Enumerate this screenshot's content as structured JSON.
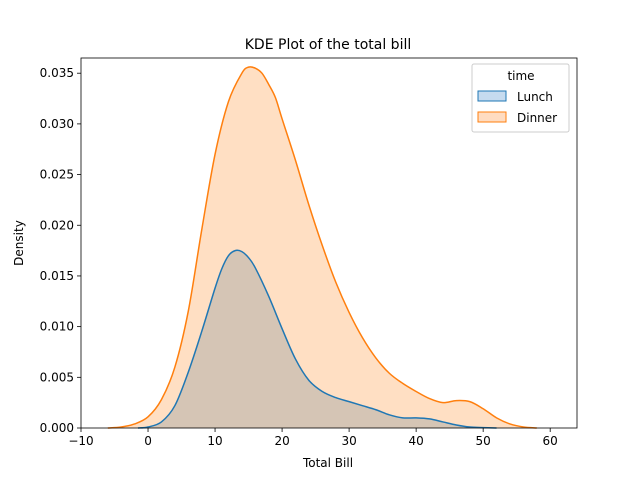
{
  "chart_data": {
    "type": "area",
    "title": "KDE Plot of the total bill",
    "xlabel": "Total Bill",
    "ylabel": "Density",
    "xlim": [
      -10,
      64
    ],
    "ylim": [
      0,
      0.0365
    ],
    "xticks": [
      -10,
      0,
      10,
      20,
      30,
      40,
      50,
      60
    ],
    "xtick_labels": [
      "−10",
      "0",
      "10",
      "20",
      "30",
      "40",
      "50",
      "60"
    ],
    "yticks": [
      0,
      0.005,
      0.01,
      0.015,
      0.02,
      0.025,
      0.03,
      0.035
    ],
    "ytick_labels": [
      "0.000",
      "0.005",
      "0.010",
      "0.015",
      "0.020",
      "0.025",
      "0.030",
      "0.035"
    ],
    "grid": false,
    "legend": {
      "title": "time",
      "placement": "top-right"
    },
    "series": [
      {
        "name": "Lunch",
        "color": "#1f77b4",
        "fill": "#c6dbef",
        "x": [
          -1.5,
          0,
          2,
          4,
          6,
          8,
          10,
          11,
          12,
          13,
          14,
          15,
          16,
          18,
          20,
          22,
          24,
          26,
          28,
          30,
          32,
          34,
          36,
          38,
          40,
          42,
          44,
          46,
          48,
          50,
          52
        ],
        "y": [
          0.0,
          0.0001,
          0.0006,
          0.0022,
          0.0055,
          0.0095,
          0.0138,
          0.0157,
          0.017,
          0.0175,
          0.0174,
          0.0168,
          0.0158,
          0.013,
          0.0098,
          0.0068,
          0.0047,
          0.0036,
          0.003,
          0.0026,
          0.0022,
          0.0018,
          0.0013,
          0.001,
          0.001,
          0.0009,
          0.0006,
          0.0003,
          0.0001,
          4e-05,
          0.0
        ]
      },
      {
        "name": "Dinner",
        "color": "#ff7f0e",
        "fill": "#ffdcc1",
        "x": [
          -6,
          -4,
          -2,
          0,
          2,
          4,
          6,
          8,
          10,
          12,
          14,
          15,
          16,
          17,
          18,
          19,
          20,
          22,
          24,
          26,
          28,
          30,
          32,
          34,
          36,
          38,
          40,
          42,
          44,
          46,
          48,
          50,
          52,
          54,
          56,
          58
        ],
        "y": [
          0.0,
          0.0001,
          0.0004,
          0.0011,
          0.0028,
          0.006,
          0.0115,
          0.0195,
          0.027,
          0.0322,
          0.035,
          0.0356,
          0.0355,
          0.035,
          0.0339,
          0.0326,
          0.0305,
          0.0264,
          0.022,
          0.018,
          0.0144,
          0.0114,
          0.0089,
          0.0069,
          0.0054,
          0.0044,
          0.0036,
          0.0029,
          0.0025,
          0.0027,
          0.0026,
          0.0019,
          0.001,
          0.0004,
          0.0001,
          0.0
        ]
      }
    ]
  }
}
